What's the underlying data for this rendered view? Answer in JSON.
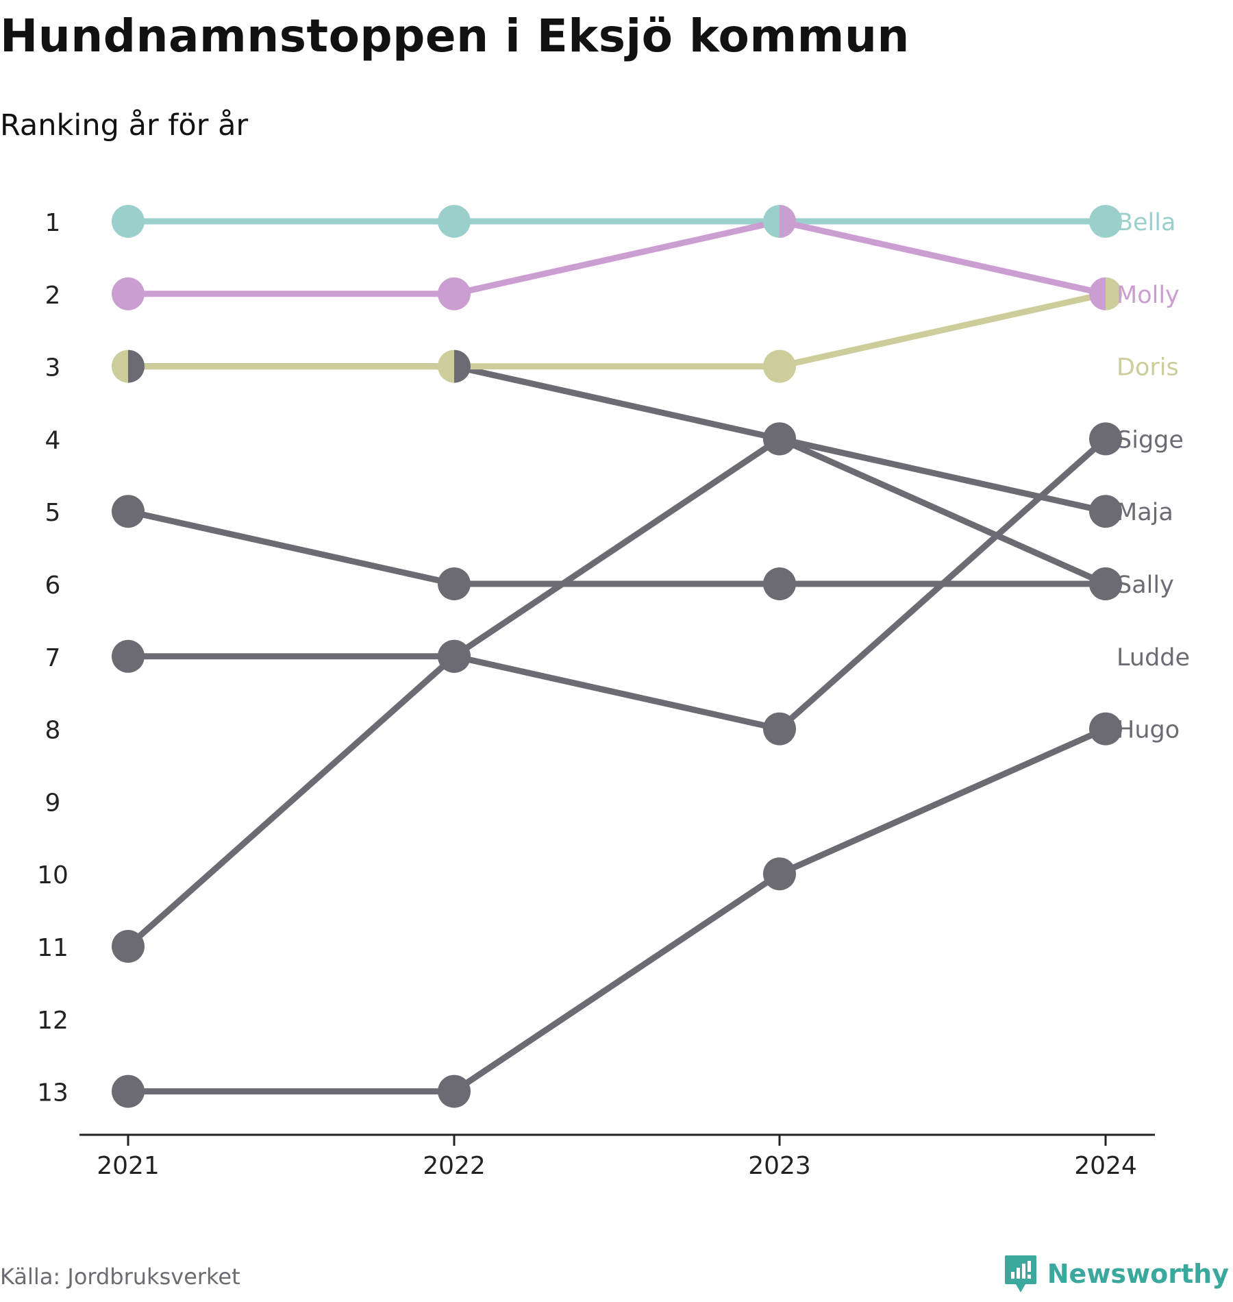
{
  "title": "Hundnamnstoppen i Eksjö kommun",
  "subtitle": "Ranking år för år",
  "source": "Källa: Jordbruksverket",
  "brand": {
    "name": "Newsworthy",
    "icon": "newsworthy-chart-bubble-icon",
    "color": "#3aa89c"
  },
  "chart_data": {
    "type": "line",
    "x": [
      "2021",
      "2022",
      "2023",
      "2024"
    ],
    "y_ticks": [
      "1",
      "2",
      "3",
      "4",
      "5",
      "6",
      "7",
      "8",
      "9",
      "10",
      "11",
      "12",
      "13"
    ],
    "ylim": [
      1,
      13
    ],
    "y_inverted": true,
    "grid": false,
    "series": [
      {
        "name": "Bella",
        "color": "#9bcfcc",
        "values": [
          1,
          1,
          1,
          1
        ]
      },
      {
        "name": "Molly",
        "color": "#cb9ed1",
        "values": [
          2,
          2,
          1,
          2
        ]
      },
      {
        "name": "Doris",
        "color": "#cccd9b",
        "values": [
          3,
          3,
          3,
          2
        ]
      },
      {
        "name": "Sigge",
        "color": "#6c6b73",
        "values": [
          11,
          7,
          4,
          6
        ]
      },
      {
        "name": "Maja",
        "color": "#6c6b73",
        "values": [
          3,
          3,
          4,
          5
        ]
      },
      {
        "name": "Sally",
        "color": "#6c6b73",
        "values": [
          5,
          6,
          6,
          6
        ]
      },
      {
        "name": "Ludde",
        "color": "#6c6b73",
        "values": [
          7,
          7,
          8,
          4
        ]
      },
      {
        "name": "Hugo",
        "color": "#6c6b73",
        "values": [
          13,
          13,
          10,
          8
        ]
      }
    ],
    "legend_values_2024": [
      "1",
      "2",
      "3",
      "4",
      "5",
      "6",
      "7",
      "8"
    ],
    "label_rows": [
      1,
      2,
      3,
      4,
      5,
      6,
      7,
      8
    ]
  }
}
